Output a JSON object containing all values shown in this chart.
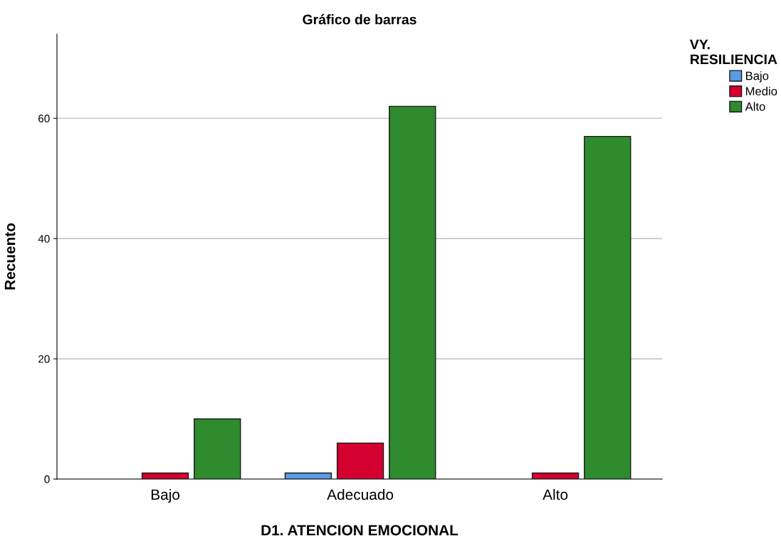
{
  "chart_data": {
    "type": "bar",
    "title": "Gráfico de barras",
    "xlabel": "D1. ATENCION EMOCIONAL",
    "ylabel": "Recuento",
    "legend_title": "VY.\nRESILIENCIA",
    "categories": [
      "Bajo",
      "Adecuado",
      "Alto"
    ],
    "series": [
      {
        "name": "Bajo",
        "color": "#5b9be6",
        "values": [
          null,
          1,
          null
        ]
      },
      {
        "name": "Medio",
        "color": "#d40030",
        "values": [
          1,
          6,
          1
        ]
      },
      {
        "name": "Alto",
        "color": "#2e8b2e",
        "values": [
          10,
          62,
          57
        ]
      }
    ],
    "ylim": [
      0,
      74
    ],
    "yticks": [
      0,
      20,
      40,
      60
    ],
    "grid": "y",
    "legend": "top right"
  }
}
